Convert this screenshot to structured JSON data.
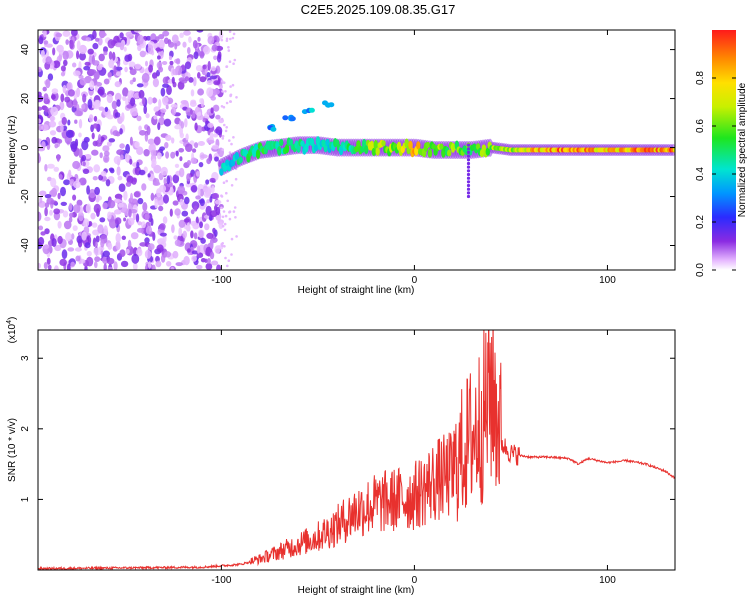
{
  "title": "C2E5.2025.109.08.35.G17",
  "chart_data": [
    {
      "type": "heatmap",
      "xlabel": "Height of straight line (km)",
      "ylabel": "Frequency (Hz)",
      "xlim": [
        -195,
        135
      ],
      "ylim": [
        -50,
        48
      ],
      "xticks": [
        -100,
        0,
        100
      ],
      "yticks": [
        -40,
        -20,
        0,
        20,
        40
      ],
      "colorbar": {
        "label": "Normalized spectral amplitude",
        "range": [
          0,
          1
        ],
        "ticks": [
          "0.0",
          "0.2",
          "0.4",
          "0.6",
          "0.8"
        ],
        "tick_values": [
          0.0,
          0.2,
          0.4,
          0.6,
          0.8
        ]
      },
      "noise_region": {
        "x_range": [
          -195,
          -100
        ],
        "y_range": [
          -50,
          48
        ]
      },
      "signal_ridge": [
        {
          "x": -100,
          "freq": -8,
          "amp": 0.45
        },
        {
          "x": -90,
          "freq": -4,
          "amp": 0.5
        },
        {
          "x": -80,
          "freq": -1,
          "amp": 0.55
        },
        {
          "x": -70,
          "freq": 0,
          "amp": 0.55
        },
        {
          "x": -60,
          "freq": 1,
          "amp": 0.5
        },
        {
          "x": -50,
          "freq": 1,
          "amp": 0.45
        },
        {
          "x": -40,
          "freq": 0,
          "amp": 0.5
        },
        {
          "x": -30,
          "freq": 0,
          "amp": 0.55
        },
        {
          "x": -20,
          "freq": 0,
          "amp": 0.75
        },
        {
          "x": -10,
          "freq": 0,
          "amp": 0.7
        },
        {
          "x": 0,
          "freq": 0,
          "amp": 0.85
        },
        {
          "x": 10,
          "freq": -1,
          "amp": 0.7
        },
        {
          "x": 20,
          "freq": -1,
          "amp": 0.65
        },
        {
          "x": 30,
          "freq": -1,
          "amp": 0.6
        },
        {
          "x": 40,
          "freq": 0,
          "amp": 0.7
        },
        {
          "x": 50,
          "freq": -1,
          "amp": 0.75
        },
        {
          "x": 60,
          "freq": -1,
          "amp": 0.85
        },
        {
          "x": 70,
          "freq": -1,
          "amp": 0.95
        },
        {
          "x": 80,
          "freq": -1,
          "amp": 0.95
        },
        {
          "x": 90,
          "freq": -1,
          "amp": 0.9
        },
        {
          "x": 100,
          "freq": -1,
          "amp": 0.85
        },
        {
          "x": 110,
          "freq": -1,
          "amp": 0.9
        },
        {
          "x": 120,
          "freq": -1,
          "amp": 0.95
        },
        {
          "x": 130,
          "freq": -1,
          "amp": 0.95
        }
      ],
      "upper_branch": [
        {
          "x": -75,
          "freq": 8
        },
        {
          "x": -65,
          "freq": 12
        },
        {
          "x": -55,
          "freq": 15
        },
        {
          "x": -45,
          "freq": 18
        }
      ]
    },
    {
      "type": "line",
      "xlabel": "Height of straight line (km)",
      "ylabel": "SNR (10 * v/v)",
      "y_multiplier": "(x10",
      "y_multiplier_exp": "4",
      "y_multiplier_close": ")",
      "xlim": [
        -195,
        135
      ],
      "ylim": [
        0,
        3.4
      ],
      "xticks": [
        -100,
        0,
        100
      ],
      "yticks": [
        1,
        2,
        3
      ],
      "color": "#e8312e",
      "series": [
        {
          "x": [
            -195,
            -150,
            -110,
            -90,
            -80,
            -70,
            -60,
            -50,
            -40,
            -30,
            -20,
            -10,
            0,
            10,
            20,
            25,
            30,
            35,
            40,
            45,
            50,
            55,
            60,
            70,
            80,
            85,
            90,
            100,
            110,
            120,
            130,
            135
          ],
          "y": [
            0.02,
            0.03,
            0.04,
            0.08,
            0.15,
            0.25,
            0.35,
            0.45,
            0.6,
            0.8,
            0.9,
            0.95,
            1.0,
            1.2,
            1.3,
            1.6,
            1.8,
            2.0,
            2.5,
            1.8,
            1.65,
            1.62,
            1.6,
            1.6,
            1.58,
            1.5,
            1.58,
            1.52,
            1.55,
            1.5,
            1.4,
            1.3
          ]
        }
      ]
    }
  ]
}
